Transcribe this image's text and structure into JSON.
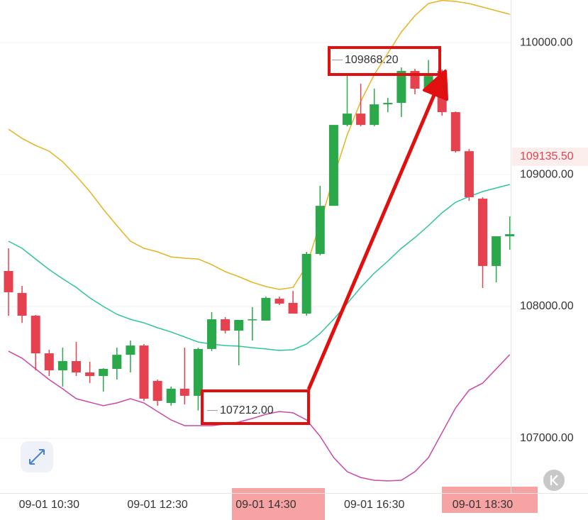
{
  "chart_data": {
    "type": "candlestick",
    "categories": [
      null,
      null,
      null,
      "09-01 10:30",
      null,
      null,
      null,
      null,
      null,
      null,
      null,
      "09-01 12:30",
      null,
      null,
      null,
      null,
      null,
      null,
      null,
      "09-01 14:30",
      null,
      null,
      null,
      null,
      null,
      null,
      null,
      "09-01 16:30",
      null,
      null,
      null,
      null,
      null,
      null,
      null,
      "09-01 18:30",
      null,
      null
    ],
    "open": [
      108269,
      108102,
      107930,
      107645,
      107516,
      107586,
      107500,
      107473,
      107527,
      107634,
      107704,
      107436,
      107269,
      107377,
      107323,
      107678,
      107903,
      107817,
      107898,
      107893,
      108059,
      108027,
      107946,
      108398,
      108763,
      109376,
      109462,
      109376,
      109532,
      109543,
      109785,
      109651,
      109785,
      109473,
      109177,
      108817,
      108307,
      108532
    ],
    "high": [
      108441,
      108156,
      107935,
      107672,
      107688,
      107731,
      107581,
      107532,
      107688,
      107742,
      107715,
      107446,
      107393,
      107688,
      107688,
      107957,
      107919,
      107898,
      107995,
      108075,
      108075,
      108118,
      108414,
      108914,
      109376,
      109758,
      109688,
      109651,
      109581,
      109812,
      109801,
      109868.2,
      109796,
      109478,
      109194,
      108828,
      108532,
      108683
    ],
    "low": [
      107930,
      107876,
      107516,
      107473,
      107393,
      107473,
      107420,
      107355,
      107446,
      107500,
      107285,
      107248,
      107248,
      107258,
      107212,
      107662,
      107796,
      107554,
      107742,
      107893,
      108011,
      107946,
      107930,
      108387,
      108763,
      109366,
      109366,
      109366,
      109473,
      109436,
      109608,
      109624,
      109446,
      109167,
      108801,
      108140,
      108183,
      108430
    ],
    "close": [
      108108,
      107930,
      107645,
      107516,
      107586,
      107500,
      107473,
      107527,
      107634,
      107704,
      107301,
      107285,
      107377,
      107323,
      107678,
      107903,
      107817,
      107898,
      107903,
      108065,
      108022,
      107946,
      108398,
      108763,
      109376,
      109462,
      109376,
      109532,
      109543,
      109785,
      109651,
      109747,
      109473,
      109177,
      108828,
      108307,
      108532,
      108548
    ],
    "up_color": "#2aa84a",
    "down_color": "#e5414f",
    "bands": [
      {
        "color": "#e6b422",
        "values": [
          109344,
          109274,
          109220,
          109177,
          109097,
          108989,
          108871,
          108737,
          108613,
          108495,
          108441,
          108414,
          108376,
          108366,
          108360,
          108317,
          108264,
          108226,
          108183,
          108151,
          108129,
          108145,
          108307,
          108629,
          108979,
          109301,
          109554,
          109758,
          109919,
          110081,
          110204,
          110296,
          110320,
          110312,
          110296,
          110269,
          110242,
          110215
        ]
      },
      {
        "color": "#2ec4a0",
        "values": [
          108495,
          108441,
          108360,
          108280,
          108210,
          108145,
          108065,
          108000,
          107941,
          107903,
          107876,
          107839,
          107807,
          107769,
          107731,
          107715,
          107704,
          107699,
          107688,
          107678,
          107667,
          107672,
          107715,
          107796,
          107903,
          108022,
          108145,
          108253,
          108344,
          108441,
          108522,
          108613,
          108710,
          108790,
          108833,
          108871,
          108898,
          108925
        ]
      },
      {
        "color": "#c94aa8",
        "values": [
          107661,
          107608,
          107527,
          107446,
          107376,
          107301,
          107274,
          107248,
          107269,
          107301,
          107269,
          107204,
          107140,
          107097,
          107097,
          107097,
          107108,
          107124,
          107151,
          107183,
          107204,
          107194,
          107140,
          107016,
          106855,
          106748,
          106704,
          106683,
          106678,
          106683,
          106748,
          106855,
          107043,
          107231,
          107366,
          107419,
          107527,
          107635
        ]
      }
    ],
    "ylim": [
      106586,
      110323
    ],
    "yticks": [
      {
        "value": 107000,
        "label": "107000.00"
      },
      {
        "value": 108000,
        "label": "108000.00"
      },
      {
        "value": 109000,
        "label": "109000.00"
      },
      {
        "value": 110000,
        "label": "110000.00"
      }
    ],
    "grid": true,
    "current_price": {
      "value": 109135.5,
      "label": "109135.50",
      "color": "#e5414f"
    },
    "annotations": [
      {
        "value": 107212,
        "label": "107212.00"
      },
      {
        "value": 109868.2,
        "label": "109868.20"
      }
    ]
  }
}
